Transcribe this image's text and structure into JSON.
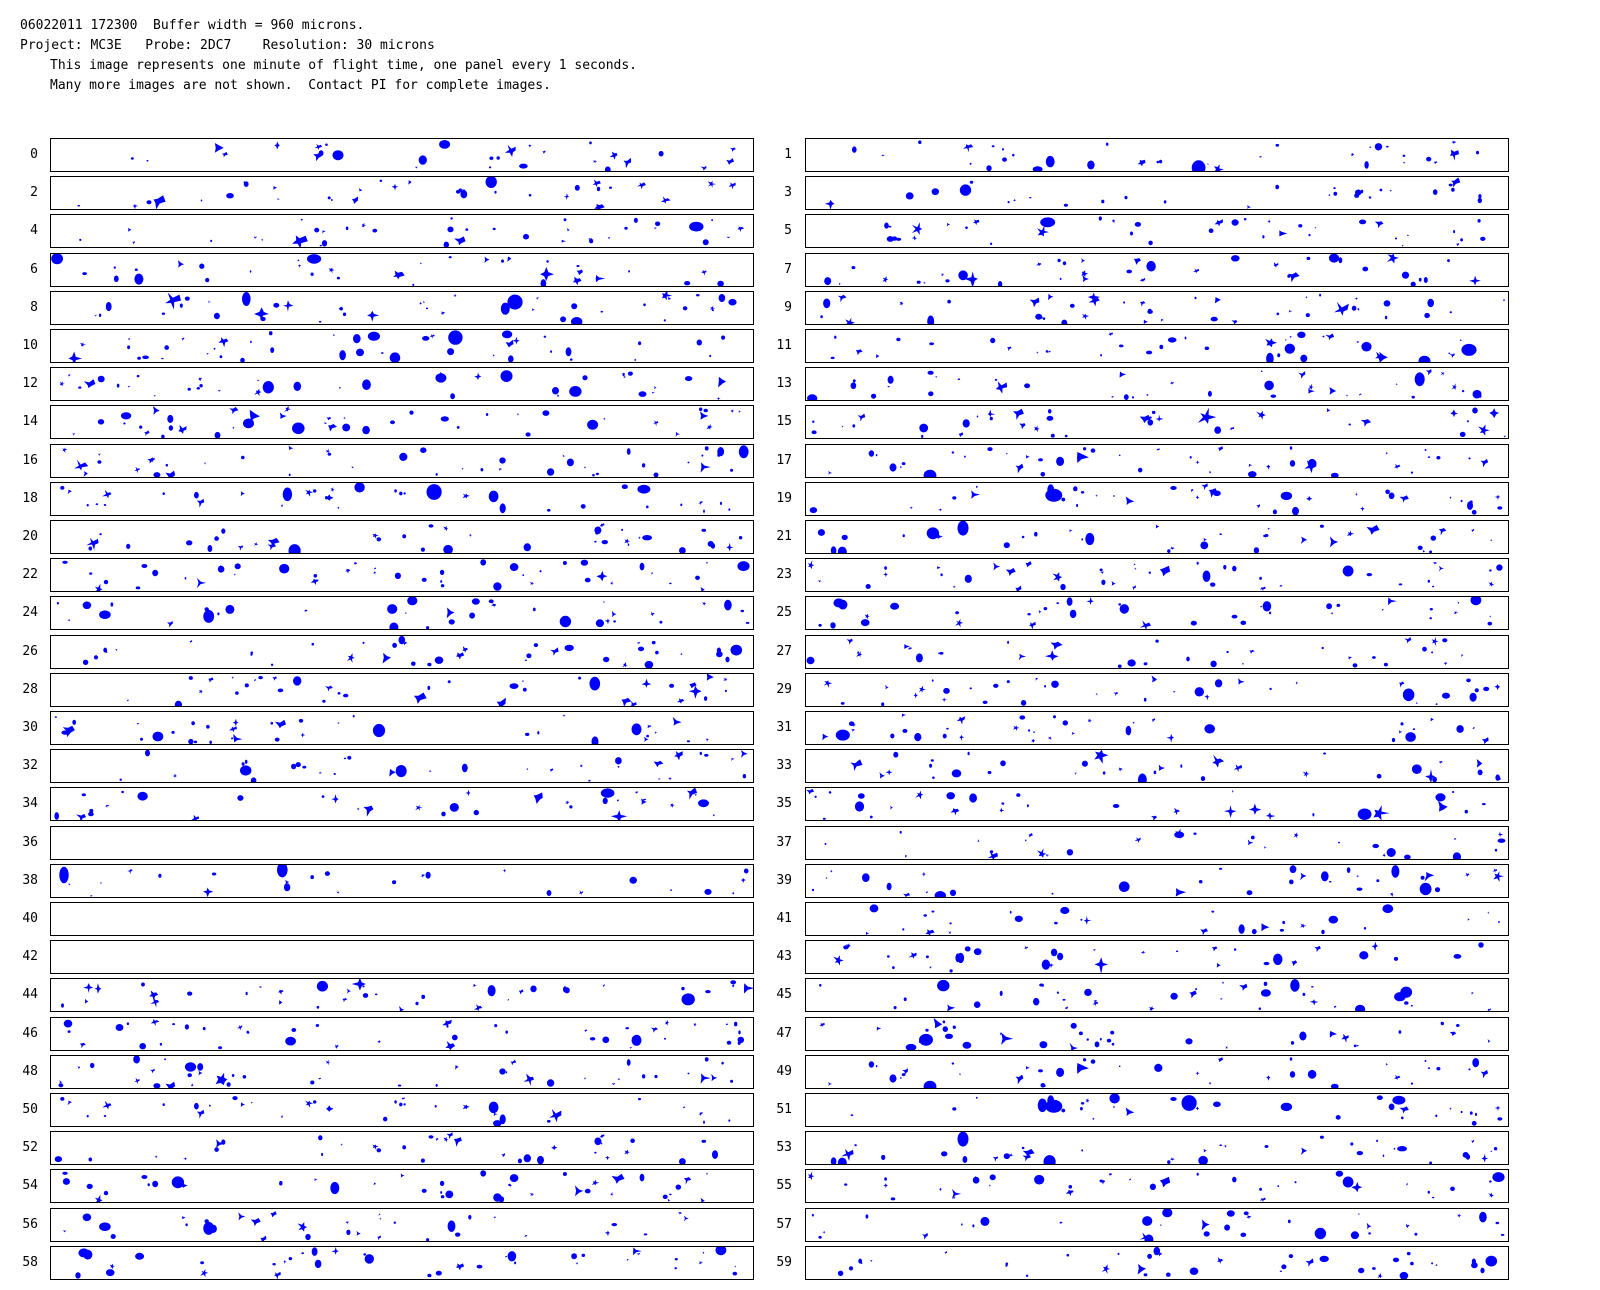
{
  "header": {
    "line1": "06022011 172300  Buffer width = 960 microns.",
    "line2": "Project: MC3E   Probe: 2DC7    Resolution: 30 microns",
    "line3": "This image represents one minute of flight time, one panel every 1 seconds.",
    "line4": "Many more images are not shown.  Contact PI for complete images."
  },
  "particle_color": "#0000ff",
  "panels": [
    {
      "label": "0",
      "density": 0.6
    },
    {
      "label": "1",
      "density": 0.7
    },
    {
      "label": "2",
      "density": 0.7
    },
    {
      "label": "3",
      "density": 0.6
    },
    {
      "label": "4",
      "density": 0.8
    },
    {
      "label": "5",
      "density": 0.8
    },
    {
      "label": "6",
      "density": 0.7
    },
    {
      "label": "7",
      "density": 0.8
    },
    {
      "label": "8",
      "density": 0.9
    },
    {
      "label": "9",
      "density": 0.9
    },
    {
      "label": "10",
      "density": 0.9
    },
    {
      "label": "11",
      "density": 0.8
    },
    {
      "label": "12",
      "density": 0.8
    },
    {
      "label": "13",
      "density": 0.8
    },
    {
      "label": "14",
      "density": 0.9
    },
    {
      "label": "15",
      "density": 0.8
    },
    {
      "label": "16",
      "density": 0.9
    },
    {
      "label": "17",
      "density": 0.9
    },
    {
      "label": "18",
      "density": 0.8
    },
    {
      "label": "19",
      "density": 0.8
    },
    {
      "label": "20",
      "density": 0.8
    },
    {
      "label": "21",
      "density": 0.8
    },
    {
      "label": "22",
      "density": 0.9
    },
    {
      "label": "23",
      "density": 0.9
    },
    {
      "label": "24",
      "density": 0.8
    },
    {
      "label": "25",
      "density": 0.8
    },
    {
      "label": "26",
      "density": 0.8
    },
    {
      "label": "27",
      "density": 0.7
    },
    {
      "label": "28",
      "density": 0.8
    },
    {
      "label": "29",
      "density": 0.8
    },
    {
      "label": "30",
      "density": 0.8
    },
    {
      "label": "31",
      "density": 0.8
    },
    {
      "label": "32",
      "density": 0.7
    },
    {
      "label": "33",
      "density": 0.7
    },
    {
      "label": "34",
      "density": 0.7
    },
    {
      "label": "35",
      "density": 0.7
    },
    {
      "label": "36",
      "density": 0
    },
    {
      "label": "37",
      "density": 0.6
    },
    {
      "label": "38",
      "density": 0.6
    },
    {
      "label": "39",
      "density": 0.7
    },
    {
      "label": "40",
      "density": 0
    },
    {
      "label": "41",
      "density": 0.6
    },
    {
      "label": "42",
      "density": 0
    },
    {
      "label": "43",
      "density": 0.7
    },
    {
      "label": "44",
      "density": 0.8
    },
    {
      "label": "45",
      "density": 0.8
    },
    {
      "label": "46",
      "density": 0.9
    },
    {
      "label": "47",
      "density": 0.8
    },
    {
      "label": "48",
      "density": 0.9
    },
    {
      "label": "49",
      "density": 0.8
    },
    {
      "label": "50",
      "density": 0.7
    },
    {
      "label": "51",
      "density": 0.7
    },
    {
      "label": "52",
      "density": 0.7
    },
    {
      "label": "53",
      "density": 0.8
    },
    {
      "label": "54",
      "density": 0.9
    },
    {
      "label": "55",
      "density": 0.8
    },
    {
      "label": "56",
      "density": 0.7
    },
    {
      "label": "57",
      "density": 0.7
    },
    {
      "label": "58",
      "density": 0.8
    },
    {
      "label": "59",
      "density": 0.8
    }
  ]
}
